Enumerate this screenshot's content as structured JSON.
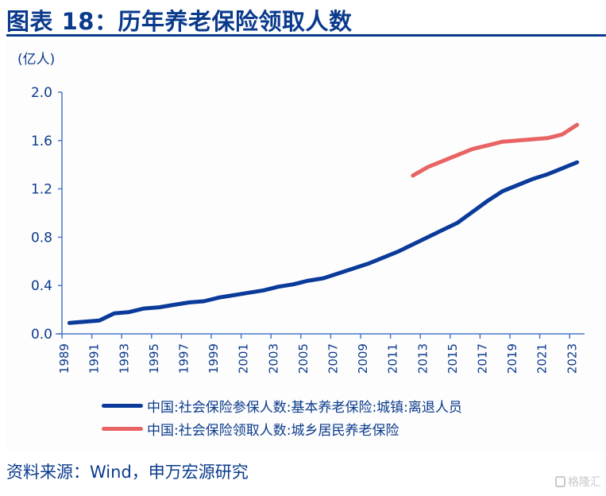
{
  "title": "图表 18：历年养老保险领取人数",
  "source": "资料来源：Wind，申万宏源研究",
  "watermark": "格隆汇",
  "chart_data": {
    "type": "line",
    "title": "历年养老保险领取人数",
    "ylabel": "(亿人)",
    "xlabel": "",
    "ylim": [
      0,
      2.0
    ],
    "yticks": [
      "0.0",
      "0.4",
      "0.8",
      "1.2",
      "1.6",
      "2.0"
    ],
    "x": [
      1989,
      1990,
      1991,
      1992,
      1993,
      1994,
      1995,
      1996,
      1997,
      1998,
      1999,
      2000,
      2001,
      2002,
      2003,
      2004,
      2005,
      2006,
      2007,
      2008,
      2009,
      2010,
      2011,
      2012,
      2013,
      2014,
      2015,
      2016,
      2017,
      2018,
      2019,
      2020,
      2021,
      2022,
      2023
    ],
    "xticks": [
      "1989",
      "1991",
      "1993",
      "1995",
      "1997",
      "1999",
      "2001",
      "2003",
      "2005",
      "2007",
      "2009",
      "2011",
      "2013",
      "2015",
      "2017",
      "2019",
      "2021",
      "2023"
    ],
    "grid": false,
    "legend_position": "bottom",
    "series": [
      {
        "name": "中国:社会保险参保人数:基本养老保险:城镇:离退人员",
        "color": "#0a3a9a",
        "values": [
          0.09,
          0.1,
          0.11,
          0.17,
          0.18,
          0.21,
          0.22,
          0.24,
          0.26,
          0.27,
          0.3,
          0.32,
          0.34,
          0.36,
          0.39,
          0.41,
          0.44,
          0.46,
          0.5,
          0.54,
          0.58,
          0.63,
          0.68,
          0.74,
          0.8,
          0.86,
          0.92,
          1.01,
          1.1,
          1.18,
          1.23,
          1.28,
          1.32,
          1.37,
          1.42
        ]
      },
      {
        "name": "中国:社会保险领取人数:城乡居民养老保险",
        "color": "#e86464",
        "values": [
          null,
          null,
          null,
          null,
          null,
          null,
          null,
          null,
          null,
          null,
          null,
          null,
          null,
          null,
          null,
          null,
          null,
          null,
          null,
          null,
          null,
          null,
          null,
          1.31,
          1.38,
          1.43,
          1.48,
          1.53,
          1.56,
          1.59,
          1.6,
          1.61,
          1.62,
          1.65,
          1.73
        ]
      }
    ]
  }
}
